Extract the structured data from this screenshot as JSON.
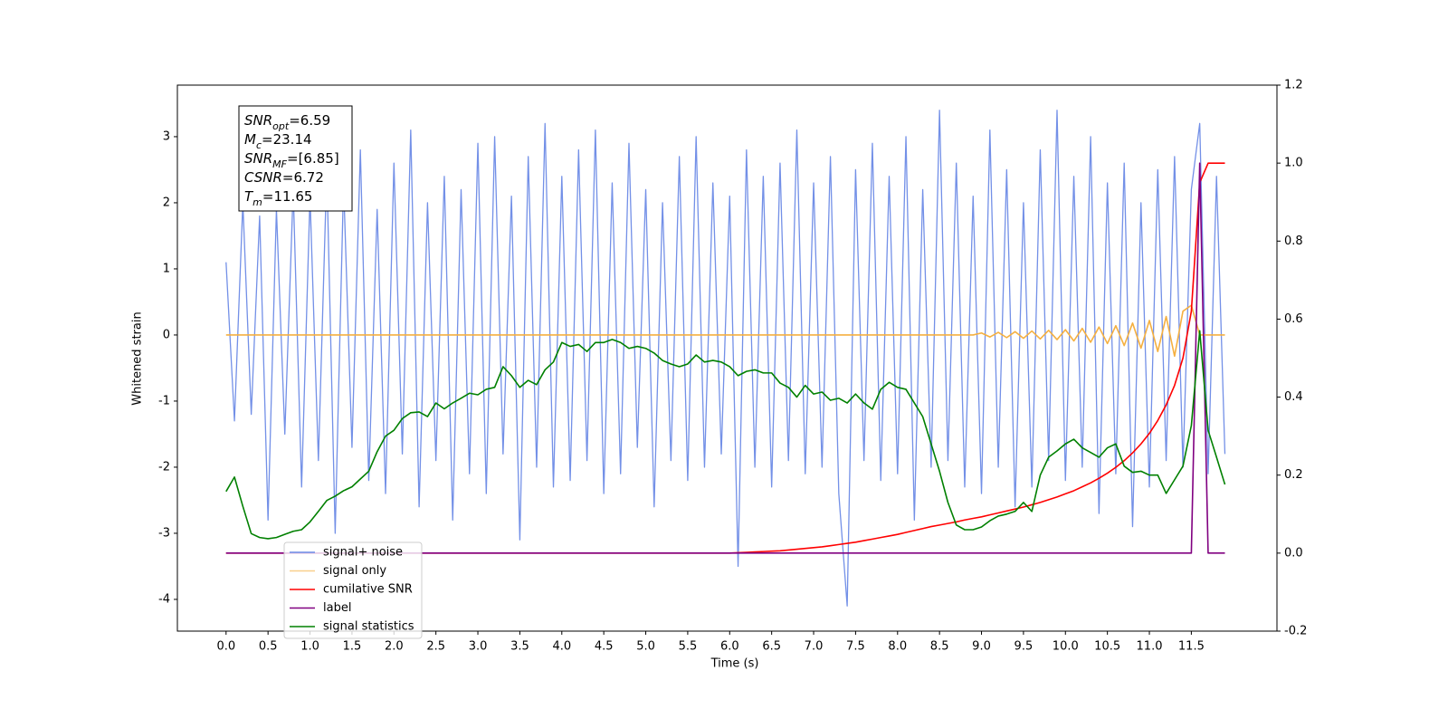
{
  "chart_data": {
    "type": "line",
    "xlabel": "Time (s)",
    "ylabel": "Whitened strain",
    "xlim": [
      -0.58,
      12.52
    ],
    "ylim": [
      -4.48,
      3.78
    ],
    "y2lim": [
      -0.2,
      1.2
    ],
    "xticks": [
      {
        "value": 0,
        "label": "0.0"
      },
      0.5,
      {
        "value": 1,
        "label": "1.0"
      },
      1.5,
      {
        "value": 2,
        "label": "2.0"
      },
      2.5,
      {
        "value": 3,
        "label": "3.0"
      },
      3.5,
      {
        "value": 4,
        "label": "4.0"
      },
      4.5,
      {
        "value": 5,
        "label": "5.0"
      },
      5.5,
      {
        "value": 6,
        "label": "6.0"
      },
      6.5,
      {
        "value": 7,
        "label": "7.0"
      },
      7.5,
      {
        "value": 8,
        "label": "8.0"
      },
      8.5,
      {
        "value": 9,
        "label": "9.0"
      },
      9.5,
      {
        "value": 10,
        "label": "10.0"
      },
      10.5,
      {
        "value": 11,
        "label": "11.0"
      },
      11.5
    ],
    "yticks": [
      -4,
      -3,
      -2,
      -1,
      0,
      1,
      2,
      3
    ],
    "y2ticks": [
      -0.2,
      {
        "value": 0,
        "label": "0.0"
      },
      0.2,
      0.4,
      0.6,
      0.8,
      {
        "value": 1,
        "label": "1.0"
      },
      1.2
    ],
    "legend": "lower left",
    "annotation": [
      {
        "name": "SNR",
        "sub": "opt",
        "text": "=6.59"
      },
      {
        "name": "M",
        "sub": "c",
        "text": "=23.14"
      },
      {
        "name": "SNR",
        "sub": "MF",
        "text": "=[6.85]"
      },
      {
        "name": "CSNR",
        "text": "=6.72"
      },
      {
        "name": "T",
        "sub": "m",
        "text": "=11.65"
      }
    ],
    "x": [
      0,
      0.1,
      0.2,
      0.3,
      0.4,
      0.5,
      0.6,
      0.7,
      0.8,
      0.9,
      1,
      1.1,
      1.2,
      1.3,
      1.4,
      1.5,
      1.6,
      1.7,
      1.8,
      1.9,
      2,
      2.1,
      2.2,
      2.3,
      2.4,
      2.5,
      2.6,
      2.7,
      2.8,
      2.9,
      3,
      3.1,
      3.2,
      3.3,
      3.4,
      3.5,
      3.6,
      3.7,
      3.8,
      3.9,
      4,
      4.1,
      4.2,
      4.3,
      4.4,
      4.5,
      4.6,
      4.7,
      4.8,
      4.9,
      5,
      5.1,
      5.2,
      5.3,
      5.4,
      5.5,
      5.6,
      5.7,
      5.8,
      5.9,
      6,
      6.1,
      6.2,
      6.3,
      6.4,
      6.5,
      6.6,
      6.7,
      6.8,
      6.9,
      7,
      7.1,
      7.2,
      7.3,
      7.4,
      7.5,
      7.6,
      7.7,
      7.8,
      7.9,
      8,
      8.1,
      8.2,
      8.3,
      8.4,
      8.5,
      8.6,
      8.7,
      8.8,
      8.9,
      9,
      9.1,
      9.2,
      9.3,
      9.4,
      9.5,
      9.6,
      9.7,
      9.8,
      9.9,
      10,
      10.1,
      10.2,
      10.3,
      10.4,
      10.5,
      10.6,
      10.7,
      10.8,
      10.9,
      11,
      11.1,
      11.2,
      11.3,
      11.4,
      11.5,
      11.6,
      11.7,
      11.8,
      11.9
    ],
    "series": [
      {
        "name": "signal+ noise",
        "color": "#6b8ae6",
        "axis": "y",
        "values": [
          1.1,
          -1.3,
          2.0,
          -1.2,
          1.8,
          -2.8,
          1.9,
          -1.5,
          2.2,
          -2.3,
          2.1,
          -1.9,
          2.5,
          -3.0,
          2.3,
          -1.7,
          2.8,
          -2.2,
          1.9,
          -2.4,
          2.6,
          -1.8,
          3.1,
          -2.6,
          2.0,
          -1.9,
          2.4,
          -2.8,
          2.2,
          -2.1,
          2.9,
          -2.4,
          3.0,
          -1.8,
          2.1,
          -3.1,
          2.7,
          -2.0,
          3.2,
          -2.3,
          2.4,
          -2.2,
          2.8,
          -1.9,
          3.1,
          -2.4,
          2.3,
          -2.1,
          2.9,
          -1.7,
          2.2,
          -2.6,
          2.0,
          -1.9,
          2.7,
          -2.2,
          3.0,
          -2.0,
          2.3,
          -1.8,
          2.1,
          -3.5,
          2.8,
          -2.0,
          2.4,
          -2.3,
          2.6,
          -1.9,
          3.1,
          -2.1,
          2.3,
          -2.0,
          2.7,
          -2.4,
          -4.1,
          2.5,
          -1.9,
          2.9,
          -2.2,
          2.4,
          -2.1,
          3.0,
          -2.8,
          2.2,
          -2.0,
          3.4,
          -1.9,
          2.6,
          -2.3,
          2.1,
          -2.4,
          3.1,
          -2.0,
          2.5,
          -2.6,
          2.0,
          -2.3,
          2.8,
          -1.9,
          3.4,
          -2.2,
          2.4,
          -2.0,
          3.0,
          -2.7,
          2.3,
          -2.1,
          2.6,
          -2.9,
          2.0,
          -2.3,
          2.5,
          -1.9,
          2.7,
          -2.0,
          2.2,
          3.2,
          -2.1,
          2.4,
          -1.8
        ]
      },
      {
        "name": "signal only",
        "color": "#f5b041",
        "axis": "y",
        "values": [
          0,
          0,
          0,
          0,
          0,
          0,
          0,
          0,
          0,
          0,
          0,
          0,
          0,
          0,
          0,
          0,
          0,
          0,
          0,
          0,
          0,
          0,
          0,
          0,
          0,
          0,
          0,
          0,
          0,
          0,
          0,
          0,
          0,
          0,
          0,
          0,
          0,
          0,
          0,
          0,
          0,
          0,
          0,
          0,
          0,
          0,
          0,
          0,
          0,
          0,
          0,
          0,
          0,
          0,
          0,
          0,
          0,
          0,
          0,
          0,
          0,
          0,
          0,
          0,
          0,
          0,
          0,
          0,
          0,
          0,
          0,
          0,
          0,
          0,
          0,
          0,
          0,
          0,
          0,
          0,
          0,
          0,
          0,
          0,
          0,
          0,
          0,
          0,
          0,
          0,
          0.03,
          -0.03,
          0.04,
          -0.04,
          0.05,
          -0.05,
          0.06,
          -0.06,
          0.07,
          -0.07,
          0.08,
          -0.09,
          0.1,
          -0.11,
          0.12,
          -0.13,
          0.14,
          -0.16,
          0.18,
          -0.2,
          0.22,
          -0.25,
          0.28,
          -0.32,
          0.36,
          0.45,
          0,
          0,
          0,
          0
        ]
      },
      {
        "name": "cumilative SNR",
        "color": "#ff0000",
        "axis": "y2",
        "values": [
          0,
          0,
          0,
          0,
          0,
          0,
          0,
          0,
          0,
          0,
          0,
          0,
          0,
          0,
          0,
          0,
          0,
          0,
          0,
          0,
          0,
          0,
          0,
          0,
          0,
          0,
          0,
          0,
          0,
          0,
          0,
          0,
          0,
          0,
          0,
          0,
          0,
          0,
          0,
          0,
          0,
          0,
          0,
          0,
          0,
          0,
          0,
          0,
          0,
          0,
          0,
          0,
          0,
          0,
          0,
          0,
          0,
          0,
          0,
          0,
          0,
          0.001,
          0.002,
          0.003,
          0.004,
          0.005,
          0.006,
          0.008,
          0.01,
          0.012,
          0.014,
          0.016,
          0.019,
          0.022,
          0.025,
          0.028,
          0.032,
          0.036,
          0.04,
          0.044,
          0.048,
          0.053,
          0.058,
          0.063,
          0.068,
          0.072,
          0.076,
          0.08,
          0.085,
          0.089,
          0.093,
          0.098,
          0.103,
          0.108,
          0.113,
          0.118,
          0.124,
          0.13,
          0.137,
          0.144,
          0.152,
          0.16,
          0.17,
          0.18,
          0.192,
          0.205,
          0.22,
          0.237,
          0.257,
          0.28,
          0.307,
          0.34,
          0.38,
          0.43,
          0.5,
          0.62,
          0.95,
          1.0,
          1.0,
          1.0
        ]
      },
      {
        "name": "label",
        "color": "#800080",
        "axis": "y2",
        "values": [
          0,
          0,
          0,
          0,
          0,
          0,
          0,
          0,
          0,
          0,
          0,
          0,
          0,
          0,
          0,
          0,
          0,
          0,
          0,
          0,
          0,
          0,
          0,
          0,
          0,
          0,
          0,
          0,
          0,
          0,
          0,
          0,
          0,
          0,
          0,
          0,
          0,
          0,
          0,
          0,
          0,
          0,
          0,
          0,
          0,
          0,
          0,
          0,
          0,
          0,
          0,
          0,
          0,
          0,
          0,
          0,
          0,
          0,
          0,
          0,
          0,
          0,
          0,
          0,
          0,
          0,
          0,
          0,
          0,
          0,
          0,
          0,
          0,
          0,
          0,
          0,
          0,
          0,
          0,
          0,
          0,
          0,
          0,
          0,
          0,
          0,
          0,
          0,
          0,
          0,
          0,
          0,
          0,
          0,
          0,
          0,
          0,
          0,
          0,
          0,
          0,
          0,
          0,
          0,
          0,
          0,
          0,
          0,
          0,
          0,
          0,
          0,
          0,
          0,
          0,
          0,
          1.0,
          0,
          0,
          0
        ]
      },
      {
        "name": "signal statistics",
        "color": "#008000",
        "axis": "y2",
        "values": [
          0.158,
          0.195,
          0.12,
          0.05,
          0.04,
          0.037,
          0.04,
          0.048,
          0.056,
          0.06,
          0.08,
          0.107,
          0.135,
          0.146,
          0.16,
          0.17,
          0.19,
          0.21,
          0.26,
          0.3,
          0.315,
          0.345,
          0.36,
          0.362,
          0.35,
          0.385,
          0.37,
          0.385,
          0.397,
          0.41,
          0.406,
          0.42,
          0.425,
          0.478,
          0.455,
          0.425,
          0.443,
          0.432,
          0.47,
          0.49,
          0.54,
          0.53,
          0.535,
          0.517,
          0.54,
          0.54,
          0.548,
          0.54,
          0.525,
          0.53,
          0.525,
          0.513,
          0.494,
          0.485,
          0.478,
          0.485,
          0.508,
          0.49,
          0.494,
          0.49,
          0.478,
          0.455,
          0.466,
          0.47,
          0.462,
          0.462,
          0.436,
          0.425,
          0.4,
          0.43,
          0.408,
          0.413,
          0.392,
          0.397,
          0.385,
          0.408,
          0.385,
          0.369,
          0.42,
          0.438,
          0.425,
          0.42,
          0.385,
          0.35,
          0.28,
          0.21,
          0.13,
          0.072,
          0.06,
          0.06,
          0.067,
          0.083,
          0.095,
          0.1,
          0.107,
          0.13,
          0.107,
          0.2,
          0.246,
          0.262,
          0.28,
          0.292,
          0.27,
          0.258,
          0.246,
          0.27,
          0.28,
          0.223,
          0.207,
          0.21,
          0.2,
          0.2,
          0.153,
          0.188,
          0.223,
          0.327,
          0.57,
          0.315,
          0.246,
          0.176
        ]
      }
    ]
  }
}
